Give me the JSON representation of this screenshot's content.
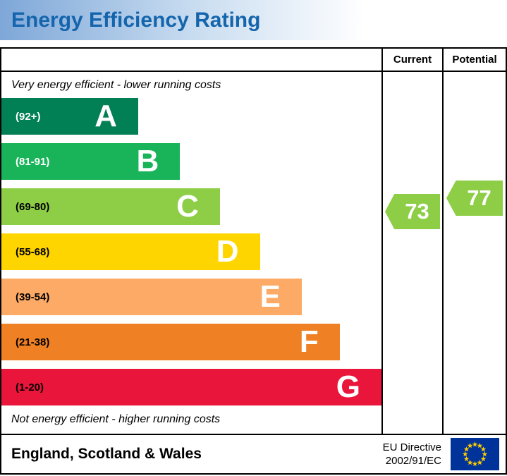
{
  "title": "Energy Efficiency Rating",
  "table": {
    "current_label": "Current",
    "potential_label": "Potential"
  },
  "notes": {
    "top": "Very energy efficient - lower running costs",
    "bottom": "Not energy efficient - higher running costs"
  },
  "footer": {
    "region": "England, Scotland & Wales",
    "directive_line1": "EU Directive",
    "directive_line2": "2002/91/EC"
  },
  "icons": {
    "flag": "eu-flag-icon"
  },
  "chart_data": {
    "type": "bar",
    "title": "Energy Efficiency Rating",
    "categories": [
      "A",
      "B",
      "C",
      "D",
      "E",
      "F",
      "G"
    ],
    "bands": [
      {
        "letter": "A",
        "range_label": "(92+)",
        "min": 92,
        "max": 100,
        "color": "#008054",
        "width_pct": 36,
        "range_text_color": "#ffffff"
      },
      {
        "letter": "B",
        "range_label": "(81-91)",
        "min": 81,
        "max": 91,
        "color": "#19b459",
        "width_pct": 47,
        "range_text_color": "#ffffff"
      },
      {
        "letter": "C",
        "range_label": "(69-80)",
        "min": 69,
        "max": 80,
        "color": "#8dce46",
        "width_pct": 57.5,
        "range_text_color": "#000000"
      },
      {
        "letter": "D",
        "range_label": "(55-68)",
        "min": 55,
        "max": 68,
        "color": "#ffd500",
        "width_pct": 68,
        "range_text_color": "#000000"
      },
      {
        "letter": "E",
        "range_label": "(39-54)",
        "min": 39,
        "max": 54,
        "color": "#fcaa65",
        "width_pct": 79,
        "range_text_color": "#000000"
      },
      {
        "letter": "F",
        "range_label": "(21-38)",
        "min": 21,
        "max": 38,
        "color": "#ef8023",
        "width_pct": 89,
        "range_text_color": "#000000"
      },
      {
        "letter": "G",
        "range_label": "(1-20)",
        "min": 1,
        "max": 20,
        "color": "#e9153b",
        "width_pct": 100,
        "range_text_color": "#000000"
      }
    ],
    "markers": {
      "current": {
        "value": 73,
        "color": "#8dce46"
      },
      "potential": {
        "value": 77,
        "color": "#8dce46"
      }
    },
    "annotations": [
      "Very energy efficient - lower running costs",
      "Not energy efficient - higher running costs"
    ],
    "legend_position": "none",
    "grid": false
  }
}
